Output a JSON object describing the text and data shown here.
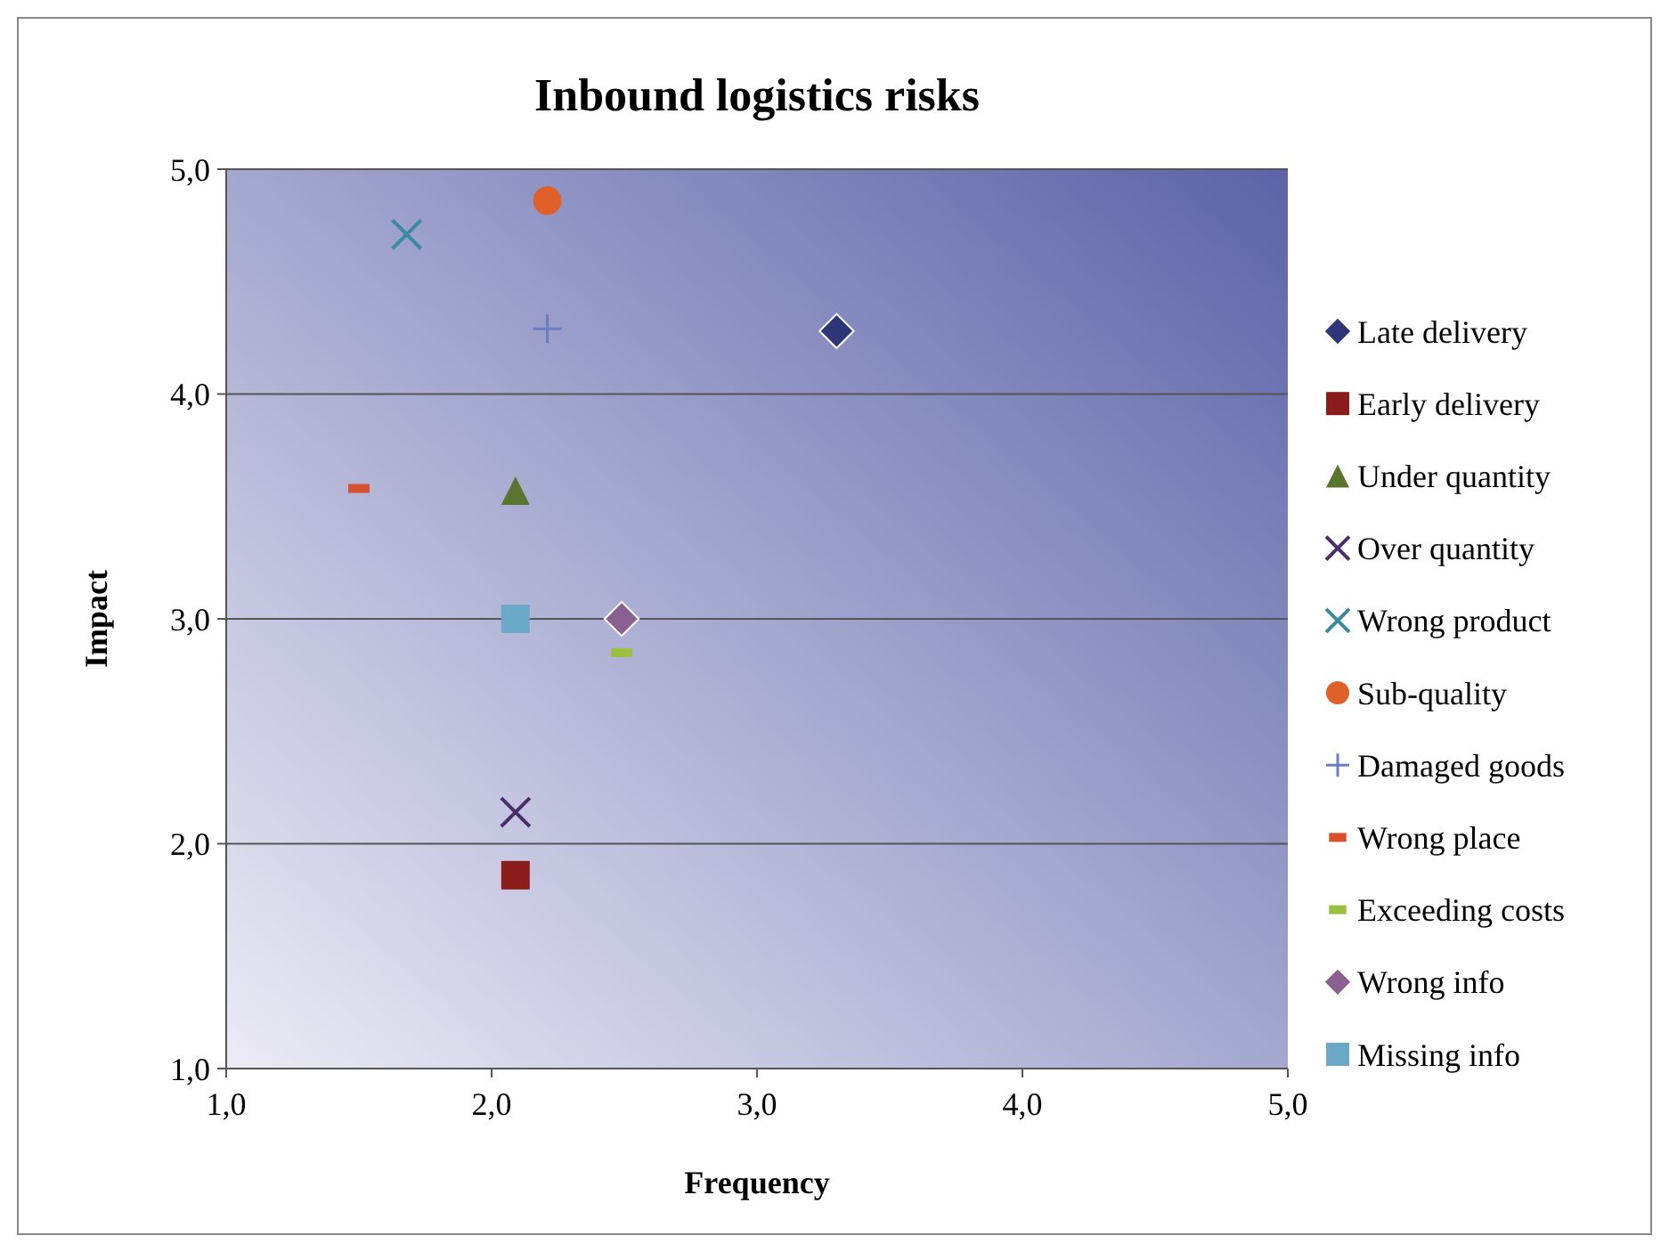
{
  "chart_data": {
    "type": "scatter",
    "title": "Inbound logistics risks",
    "xlabel": "Frequency",
    "ylabel": "Impact",
    "xlim": [
      1,
      5
    ],
    "xticks": [
      {
        "value": 1,
        "label": "1,0"
      },
      {
        "value": 2,
        "label": "2,0"
      },
      {
        "value": 3,
        "label": "3,0"
      },
      {
        "value": 4,
        "label": "4,0"
      },
      {
        "value": 5,
        "label": "5,0"
      }
    ],
    "ylim": [
      1,
      5
    ],
    "yticks": [
      {
        "value": 1,
        "label": "1,0"
      },
      {
        "value": 2,
        "label": "2,0"
      },
      {
        "value": 3,
        "label": "3,0"
      },
      {
        "value": 4,
        "label": "4,0"
      },
      {
        "value": 5,
        "label": "5,0"
      }
    ],
    "grid": "y",
    "legend": "right",
    "series": [
      {
        "name": "Late delivery",
        "color": "#2e3578",
        "marker": "diamond",
        "x": [
          3.3
        ],
        "values": [
          4.28
        ]
      },
      {
        "name": "Early delivery",
        "color": "#8b1c1c",
        "marker": "square",
        "x": [
          2.09
        ],
        "values": [
          1.86
        ]
      },
      {
        "name": "Under quantity",
        "color": "#5b7530",
        "marker": "triangle",
        "x": [
          2.09
        ],
        "values": [
          3.57
        ]
      },
      {
        "name": "Over quantity",
        "color": "#4a2d6a",
        "marker": "cross",
        "x": [
          2.09
        ],
        "values": [
          2.14
        ]
      },
      {
        "name": "Wrong product",
        "color": "#3a8aa0",
        "marker": "cross",
        "x": [
          1.68
        ],
        "values": [
          4.71
        ]
      },
      {
        "name": "Sub-quality",
        "color": "#e0602a",
        "marker": "circle",
        "x": [
          2.21
        ],
        "values": [
          4.86
        ]
      },
      {
        "name": "Damaged goods",
        "color": "#6a7fc0",
        "marker": "plus",
        "x": [
          2.21
        ],
        "values": [
          4.29
        ]
      },
      {
        "name": "Wrong place",
        "color": "#d8502a",
        "x": [
          1.5
        ],
        "values": [
          3.58
        ]
      },
      {
        "name": "Exceeding costs",
        "color": "#9ac040",
        "x": [
          2.49
        ],
        "values": [
          2.85
        ]
      },
      {
        "name": "Wrong info",
        "color": "#8a6090",
        "marker": "diamond",
        "x": [
          2.49
        ],
        "values": [
          3.0
        ]
      },
      {
        "name": "Missing info",
        "color": "#6aaac8",
        "marker": "square",
        "x": [
          2.09
        ],
        "values": [
          3.0
        ]
      }
    ]
  }
}
